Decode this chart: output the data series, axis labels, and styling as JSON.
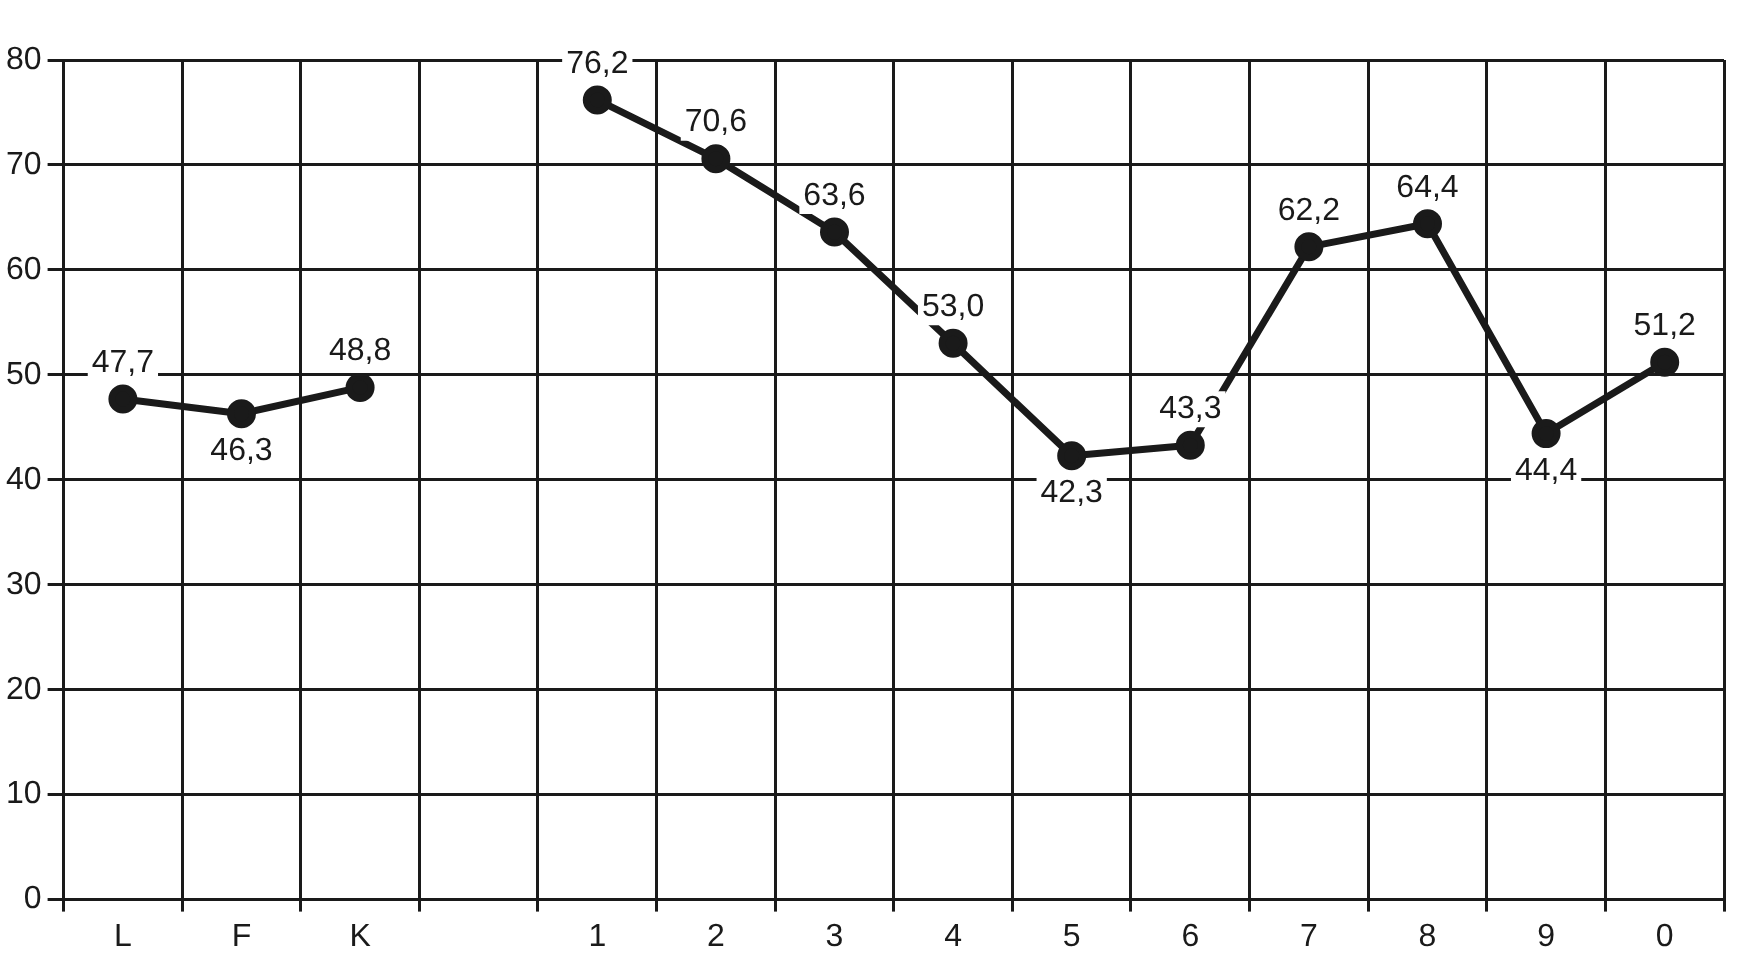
{
  "chart_data": {
    "type": "line",
    "categories": [
      "L",
      "F",
      "K",
      null,
      "1",
      "2",
      "3",
      "4",
      "5",
      "6",
      "7",
      "8",
      "9",
      "0"
    ],
    "series": [
      {
        "color": "#1a1a1a",
        "values": [
          47.7,
          46.3,
          48.8,
          null,
          76.2,
          70.6,
          63.6,
          53.0,
          42.3,
          43.3,
          62.2,
          64.4,
          44.4,
          51.2
        ],
        "value_labels": [
          "47,7",
          "46,3",
          "48,8",
          null,
          "76,2",
          "70,6",
          "63,6",
          "53,0",
          "42,3",
          "43,3",
          "62,2",
          "64,4",
          "44,4",
          "51,2"
        ]
      }
    ],
    "ylim": [
      0,
      80
    ],
    "yticks": [
      0,
      10,
      20,
      30,
      40,
      50,
      60,
      70,
      80
    ],
    "grid": true,
    "legend": false,
    "marker": "circle",
    "line_style": "solid"
  }
}
